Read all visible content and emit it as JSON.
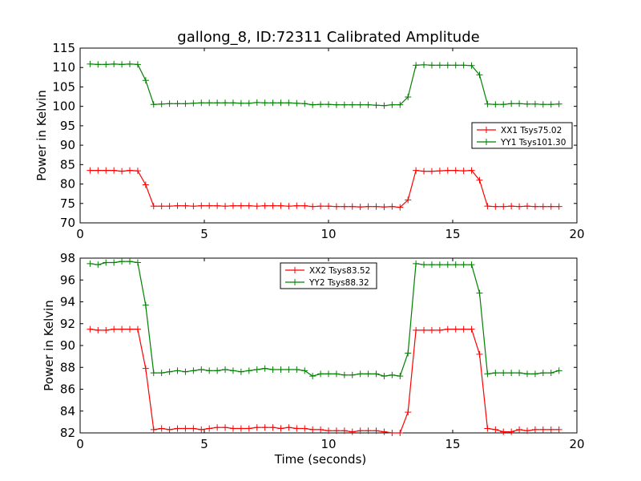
{
  "title": "gallong_8, ID:72311 Calibrated Amplitude",
  "chart_data": [
    {
      "type": "line",
      "title": "gallong_8, ID:72311 Calibrated Amplitude",
      "xlabel": "",
      "ylabel": "Power in Kelvin",
      "xlim": [
        0,
        20
      ],
      "ylim": [
        70,
        115
      ],
      "x_ticks": [
        0,
        5,
        10,
        15,
        20
      ],
      "y_ticks": [
        70,
        75,
        80,
        85,
        90,
        95,
        100,
        105,
        110,
        115
      ],
      "grid": false,
      "legend_position": "center-right",
      "x": [
        0.4,
        0.72,
        1.04,
        1.36,
        1.68,
        2.0,
        2.32,
        2.64,
        2.96,
        3.28,
        3.6,
        3.92,
        4.24,
        4.56,
        4.88,
        5.2,
        5.52,
        5.84,
        6.16,
        6.48,
        6.8,
        7.12,
        7.44,
        7.76,
        8.08,
        8.4,
        8.72,
        9.04,
        9.36,
        9.68,
        10.0,
        10.32,
        10.64,
        10.96,
        11.28,
        11.6,
        11.92,
        12.24,
        12.56,
        12.88,
        13.2,
        13.52,
        13.84,
        14.16,
        14.48,
        14.8,
        15.12,
        15.44,
        15.76,
        16.08,
        16.4,
        16.72,
        17.04,
        17.36,
        17.68,
        18.0,
        18.32,
        18.64,
        18.96,
        19.28
      ],
      "series": [
        {
          "name": "XX1 Tsys75.02",
          "color": "#ff0000",
          "values": [
            83.5,
            83.5,
            83.5,
            83.5,
            83.3,
            83.5,
            83.4,
            79.8,
            74.3,
            74.3,
            74.3,
            74.4,
            74.4,
            74.3,
            74.4,
            74.4,
            74.4,
            74.3,
            74.4,
            74.4,
            74.4,
            74.3,
            74.4,
            74.4,
            74.4,
            74.3,
            74.4,
            74.4,
            74.2,
            74.3,
            74.3,
            74.2,
            74.2,
            74.2,
            74.1,
            74.2,
            74.2,
            74.1,
            74.2,
            74.0,
            75.9,
            83.5,
            83.3,
            83.3,
            83.4,
            83.5,
            83.5,
            83.4,
            83.5,
            81.0,
            74.3,
            74.2,
            74.2,
            74.3,
            74.2,
            74.3,
            74.2,
            74.2,
            74.2,
            74.2
          ]
        },
        {
          "name": "YY1 Tsys101.30",
          "color": "#008000",
          "values": [
            110.9,
            110.8,
            110.8,
            110.9,
            110.8,
            110.9,
            110.8,
            106.7,
            100.5,
            100.6,
            100.7,
            100.7,
            100.7,
            100.8,
            100.9,
            100.9,
            100.9,
            100.9,
            100.9,
            100.8,
            100.8,
            101.0,
            100.9,
            100.9,
            100.9,
            100.9,
            100.8,
            100.7,
            100.4,
            100.5,
            100.5,
            100.4,
            100.4,
            100.4,
            100.4,
            100.4,
            100.3,
            100.2,
            100.4,
            100.4,
            102.4,
            110.6,
            110.7,
            110.6,
            110.6,
            110.6,
            110.6,
            110.6,
            110.5,
            108.1,
            100.6,
            100.5,
            100.5,
            100.7,
            100.7,
            100.6,
            100.6,
            100.5,
            100.5,
            100.6
          ]
        }
      ]
    },
    {
      "type": "line",
      "title": "",
      "xlabel": "Time (seconds)",
      "ylabel": "Power in Kelvin",
      "xlim": [
        0,
        20
      ],
      "ylim": [
        82,
        98
      ],
      "x_ticks": [
        0,
        5,
        10,
        15,
        20
      ],
      "y_ticks": [
        82,
        84,
        86,
        88,
        90,
        92,
        94,
        96,
        98
      ],
      "grid": false,
      "legend_position": "top-center",
      "x": [
        0.4,
        0.72,
        1.04,
        1.36,
        1.68,
        2.0,
        2.32,
        2.64,
        2.96,
        3.28,
        3.6,
        3.92,
        4.24,
        4.56,
        4.88,
        5.2,
        5.52,
        5.84,
        6.16,
        6.48,
        6.8,
        7.12,
        7.44,
        7.76,
        8.08,
        8.4,
        8.72,
        9.04,
        9.36,
        9.68,
        10.0,
        10.32,
        10.64,
        10.96,
        11.28,
        11.6,
        11.92,
        12.24,
        12.56,
        12.88,
        13.2,
        13.52,
        13.84,
        14.16,
        14.48,
        14.8,
        15.12,
        15.44,
        15.76,
        16.08,
        16.4,
        16.72,
        17.04,
        17.36,
        17.68,
        18.0,
        18.32,
        18.64,
        18.96,
        19.28
      ],
      "series": [
        {
          "name": "XX2 Tsys83.52",
          "color": "#ff0000",
          "values": [
            91.5,
            91.4,
            91.4,
            91.5,
            91.5,
            91.5,
            91.5,
            87.9,
            82.3,
            82.4,
            82.3,
            82.4,
            82.4,
            82.4,
            82.3,
            82.4,
            82.5,
            82.5,
            82.4,
            82.4,
            82.4,
            82.5,
            82.5,
            82.5,
            82.4,
            82.5,
            82.4,
            82.4,
            82.3,
            82.3,
            82.2,
            82.2,
            82.2,
            82.1,
            82.2,
            82.2,
            82.2,
            82.1,
            82.0,
            82.0,
            83.9,
            91.4,
            91.4,
            91.4,
            91.4,
            91.5,
            91.5,
            91.5,
            91.5,
            89.2,
            82.4,
            82.3,
            82.1,
            82.1,
            82.3,
            82.2,
            82.3,
            82.3,
            82.3,
            82.3
          ]
        },
        {
          "name": "YY2 Tsys88.32",
          "color": "#008000",
          "values": [
            97.5,
            97.4,
            97.6,
            97.6,
            97.7,
            97.7,
            97.6,
            93.7,
            87.5,
            87.5,
            87.6,
            87.7,
            87.6,
            87.7,
            87.8,
            87.7,
            87.7,
            87.8,
            87.7,
            87.6,
            87.7,
            87.8,
            87.9,
            87.8,
            87.8,
            87.8,
            87.8,
            87.7,
            87.2,
            87.4,
            87.4,
            87.4,
            87.3,
            87.3,
            87.4,
            87.4,
            87.4,
            87.2,
            87.3,
            87.2,
            89.3,
            97.5,
            97.4,
            97.4,
            97.4,
            97.4,
            97.4,
            97.4,
            97.4,
            94.8,
            87.4,
            87.5,
            87.5,
            87.5,
            87.5,
            87.4,
            87.4,
            87.5,
            87.5,
            87.7
          ]
        }
      ]
    }
  ]
}
